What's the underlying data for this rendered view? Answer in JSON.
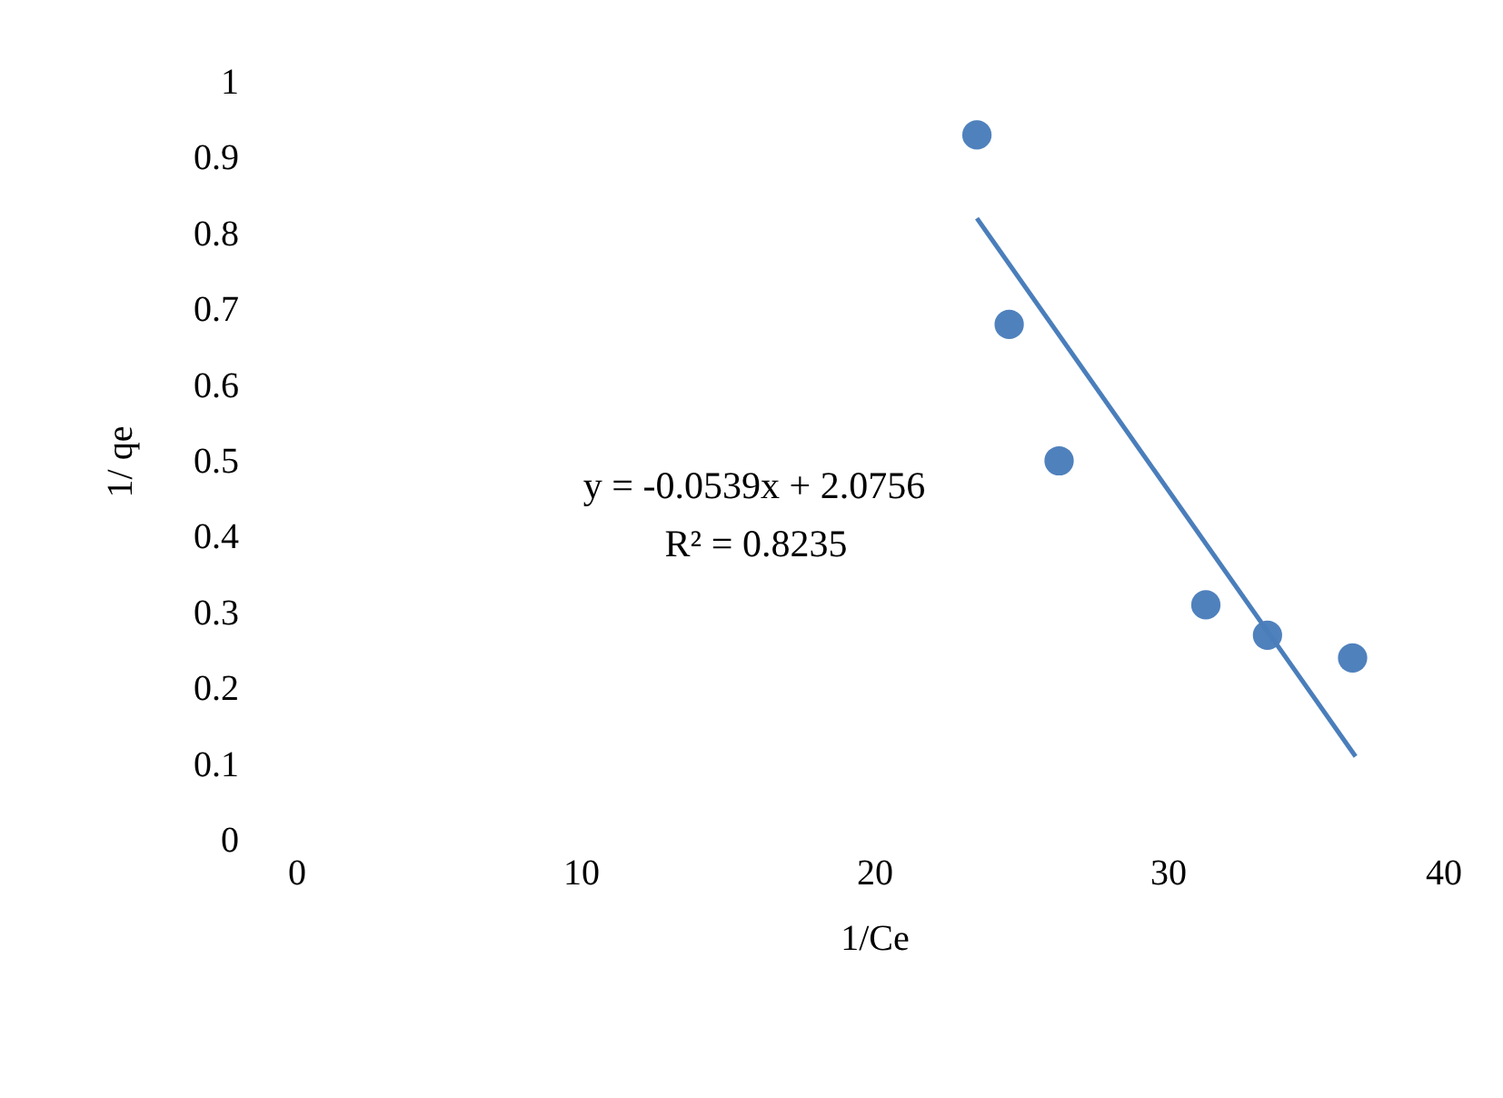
{
  "chart_data": {
    "type": "scatter",
    "xlabel": "1/Ce",
    "ylabel": "1/ qe",
    "xlim": [
      0,
      40
    ],
    "xticks": [
      0,
      10,
      20,
      30,
      40
    ],
    "ylim": [
      0,
      1
    ],
    "yticks": [
      0,
      0.1,
      0.2,
      0.3,
      0.4,
      0.5,
      0.6,
      0.7,
      0.8,
      0.9,
      1
    ],
    "grid": false,
    "series": [
      {
        "color": "#4f81bd",
        "marker": "circle",
        "x": [
          23.5,
          24.6,
          26.3,
          31.3,
          33.4,
          36.3
        ],
        "values": [
          0.93,
          0.68,
          0.5,
          0.31,
          0.27,
          0.24
        ]
      },
      {
        "type": "line",
        "color": "#4a7ebb",
        "line_style": "solid",
        "marker": "none",
        "x": [
          23.5,
          36.4
        ],
        "values": [
          0.82,
          0.11
        ]
      }
    ],
    "annotations": [
      "y = -0.0539x + 2.0756",
      "R² = 0.8235"
    ]
  }
}
